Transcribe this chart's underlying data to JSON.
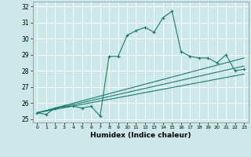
{
  "title": "",
  "xlabel": "Humidex (Indice chaleur)",
  "bg_color": "#cce8e8",
  "line_color": "#1a7a6e",
  "xlim": [
    -0.5,
    23.5
  ],
  "ylim": [
    24.8,
    32.3
  ],
  "yticks": [
    25,
    26,
    27,
    28,
    29,
    30,
    31,
    32
  ],
  "xticks": [
    0,
    1,
    2,
    3,
    4,
    5,
    6,
    7,
    8,
    9,
    10,
    11,
    12,
    13,
    14,
    15,
    16,
    17,
    18,
    19,
    20,
    21,
    22,
    23
  ],
  "series1_x": [
    0,
    1,
    2,
    3,
    4,
    5,
    6,
    7,
    8,
    9,
    10,
    11,
    12,
    13,
    14,
    15,
    16,
    17,
    18,
    19,
    20,
    21,
    22,
    23
  ],
  "series1_y": [
    25.4,
    25.3,
    25.7,
    25.8,
    25.8,
    25.7,
    25.8,
    25.2,
    28.9,
    28.9,
    30.2,
    30.5,
    30.7,
    30.4,
    31.3,
    31.7,
    29.2,
    28.9,
    28.8,
    28.8,
    28.5,
    29.0,
    28.0,
    28.1
  ],
  "series2_x": [
    0,
    23
  ],
  "series2_y": [
    25.4,
    28.8
  ],
  "series3_x": [
    0,
    23
  ],
  "series3_y": [
    25.4,
    28.3
  ],
  "series4_x": [
    0,
    23
  ],
  "series4_y": [
    25.4,
    27.8
  ]
}
